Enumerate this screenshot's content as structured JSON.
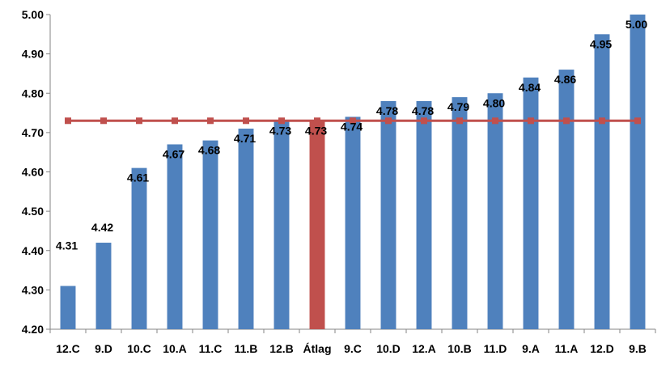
{
  "chart_data": {
    "type": "bar",
    "categories": [
      "12.C",
      "9.D",
      "10.C",
      "10.A",
      "11.C",
      "11.B",
      "12.B",
      "Átlag",
      "9.C",
      "10.D",
      "12.A",
      "10.B",
      "11.D",
      "9.A",
      "11.A",
      "12.D",
      "9.B"
    ],
    "values": [
      4.31,
      4.42,
      4.61,
      4.67,
      4.68,
      4.71,
      4.73,
      4.73,
      4.74,
      4.78,
      4.78,
      4.79,
      4.8,
      4.84,
      4.86,
      4.95,
      5.0
    ],
    "data_labels": [
      "4.31",
      "4.42",
      "4.61",
      "4.67",
      "4.68",
      "4.71",
      "4.73",
      "4.73",
      "4.74",
      "4.78",
      "4.78",
      "4.79",
      "4.80",
      "4.84",
      "4.86",
      "4.95",
      "5.00"
    ],
    "highlight_category": "Átlag",
    "average_line": {
      "value": 4.73
    },
    "ylim": [
      4.2,
      5.0
    ],
    "yticks": [
      "4.20",
      "4.30",
      "4.40",
      "4.50",
      "4.60",
      "4.70",
      "4.80",
      "4.90",
      "5.00"
    ],
    "colors": {
      "bar": "#4F81BD",
      "highlight": "#C0504D",
      "line": "#C0504D",
      "axis": "#868686"
    },
    "grid": false,
    "title": "",
    "xlabel": "",
    "ylabel": ""
  }
}
